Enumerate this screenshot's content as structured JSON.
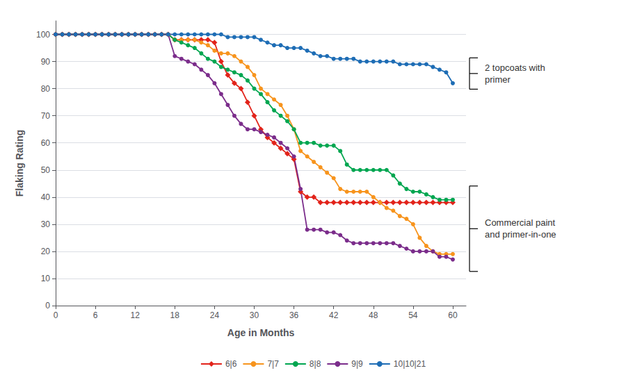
{
  "chart_data": {
    "type": "line",
    "xlabel": "Age in Months",
    "ylabel": "Flaking Rating",
    "xlim": [
      0,
      62
    ],
    "ylim": [
      0,
      105
    ],
    "xticks": [
      0,
      6,
      12,
      18,
      24,
      30,
      36,
      42,
      48,
      54,
      60
    ],
    "yticks": [
      0,
      10,
      20,
      30,
      40,
      50,
      60,
      70,
      80,
      90,
      100
    ],
    "grid": true,
    "legend": "bottom",
    "x": [
      0,
      1,
      2,
      3,
      4,
      5,
      6,
      7,
      8,
      9,
      10,
      11,
      12,
      13,
      14,
      15,
      16,
      17,
      18,
      19,
      20,
      21,
      22,
      23,
      24,
      25,
      26,
      27,
      28,
      29,
      30,
      31,
      32,
      33,
      34,
      35,
      36,
      37,
      38,
      39,
      40,
      41,
      42,
      43,
      44,
      45,
      46,
      47,
      48,
      49,
      50,
      51,
      52,
      53,
      54,
      55,
      56,
      57,
      58,
      59,
      60
    ],
    "series": [
      {
        "name": "6|6",
        "color": "#e2231a",
        "marker": "diamond",
        "values": [
          100,
          100,
          100,
          100,
          100,
          100,
          100,
          100,
          100,
          100,
          100,
          100,
          100,
          100,
          100,
          100,
          100,
          100,
          98,
          98,
          98,
          98,
          98,
          98,
          97,
          90,
          85,
          82,
          80,
          75,
          70,
          65,
          62,
          60,
          58,
          56,
          54,
          42,
          40,
          40,
          38,
          38,
          38,
          38,
          38,
          38,
          38,
          38,
          38,
          38,
          38,
          38,
          38,
          38,
          38,
          38,
          38,
          38,
          38,
          38,
          38
        ]
      },
      {
        "name": "7|7",
        "color": "#f7941d",
        "marker": "circle",
        "values": [
          100,
          100,
          100,
          100,
          100,
          100,
          100,
          100,
          100,
          100,
          100,
          100,
          100,
          100,
          100,
          100,
          100,
          100,
          98,
          98,
          98,
          98,
          97,
          96,
          94,
          93,
          93,
          92,
          90,
          88,
          85,
          80,
          78,
          76,
          74,
          70,
          65,
          57,
          55,
          53,
          51,
          49,
          47,
          43,
          42,
          42,
          42,
          42,
          40,
          38,
          36,
          35,
          33,
          32,
          30,
          25,
          22,
          20,
          19,
          19,
          19
        ]
      },
      {
        "name": "8|8",
        "color": "#00a650",
        "marker": "circle",
        "values": [
          100,
          100,
          100,
          100,
          100,
          100,
          100,
          100,
          100,
          100,
          100,
          100,
          100,
          100,
          100,
          100,
          100,
          100,
          98,
          97,
          96,
          95,
          93,
          91,
          90,
          88,
          87,
          86,
          85,
          83,
          80,
          78,
          75,
          72,
          70,
          68,
          65,
          60,
          60,
          60,
          59,
          59,
          59,
          57,
          52,
          50,
          50,
          50,
          50,
          50,
          50,
          48,
          45,
          43,
          42,
          42,
          41,
          40,
          39,
          39,
          39
        ]
      },
      {
        "name": "9|9",
        "color": "#7b2d8b",
        "marker": "circle",
        "values": [
          100,
          100,
          100,
          100,
          100,
          100,
          100,
          100,
          100,
          100,
          100,
          100,
          100,
          100,
          100,
          100,
          100,
          100,
          92,
          91,
          90,
          89,
          87,
          85,
          82,
          78,
          74,
          70,
          67,
          65,
          65,
          64,
          63,
          62,
          60,
          58,
          55,
          43,
          28,
          28,
          28,
          27,
          27,
          26,
          24,
          23,
          23,
          23,
          23,
          23,
          23,
          23,
          22,
          21,
          20,
          20,
          20,
          20,
          18,
          18,
          17
        ]
      },
      {
        "name": "10|10|21",
        "color": "#1e6db5",
        "marker": "circle",
        "values": [
          100,
          100,
          100,
          100,
          100,
          100,
          100,
          100,
          100,
          100,
          100,
          100,
          100,
          100,
          100,
          100,
          100,
          100,
          100,
          100,
          100,
          100,
          100,
          100,
          100,
          100,
          99,
          99,
          99,
          99,
          99,
          98,
          97,
          96,
          96,
          95,
          95,
          95,
          94,
          93,
          92,
          92,
          91,
          91,
          91,
          91,
          90,
          90,
          90,
          90,
          90,
          90,
          89,
          89,
          89,
          89,
          89,
          88,
          87,
          86,
          82
        ]
      }
    ],
    "annotations": [
      "2 topcoats with\nprimer",
      "Commercial paint\nand primer-in-one"
    ]
  }
}
